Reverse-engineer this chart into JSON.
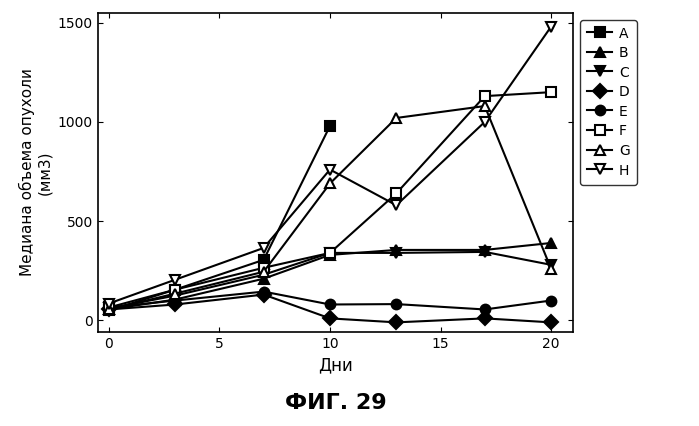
{
  "title": "ФИГ. 29",
  "xlabel": "Дни",
  "ylabel": "Медиана объема опухоли\n(мм3)",
  "xlim": [
    -0.5,
    21
  ],
  "ylim": [
    -60,
    1550
  ],
  "xticks": [
    0,
    5,
    10,
    15,
    20
  ],
  "yticks": [
    0,
    500,
    1000,
    1500
  ],
  "series": {
    "A": {
      "x": [
        0,
        3,
        7,
        10
      ],
      "y": [
        50,
        155,
        305,
        980
      ],
      "marker": "s",
      "fillstyle": "full"
    },
    "B": {
      "x": [
        0,
        3,
        7,
        10,
        13,
        17,
        20
      ],
      "y": [
        55,
        105,
        210,
        330,
        355,
        355,
        390
      ],
      "marker": "^",
      "fillstyle": "full"
    },
    "C": {
      "x": [
        0,
        3,
        7,
        10,
        13,
        17,
        20
      ],
      "y": [
        60,
        125,
        230,
        340,
        340,
        345,
        280
      ],
      "marker": "v",
      "fillstyle": "full"
    },
    "D": {
      "x": [
        0,
        3,
        7,
        10,
        13,
        17,
        20
      ],
      "y": [
        55,
        80,
        130,
        10,
        -10,
        10,
        -10
      ],
      "marker": "D",
      "fillstyle": "full"
    },
    "E": {
      "x": [
        0,
        3,
        7,
        10,
        13,
        17,
        20
      ],
      "y": [
        65,
        100,
        145,
        80,
        82,
        55,
        100
      ],
      "marker": "o",
      "fillstyle": "full"
    },
    "F": {
      "x": [
        0,
        3,
        7,
        10,
        13,
        17,
        20
      ],
      "y": [
        65,
        155,
        265,
        340,
        640,
        1130,
        1150
      ],
      "marker": "s",
      "fillstyle": "none"
    },
    "G": {
      "x": [
        0,
        3,
        7,
        10,
        13,
        17,
        20
      ],
      "y": [
        55,
        135,
        245,
        690,
        1020,
        1080,
        260
      ],
      "marker": "^",
      "fillstyle": "none"
    },
    "H": {
      "x": [
        0,
        3,
        7,
        10,
        13,
        17,
        20
      ],
      "y": [
        85,
        205,
        365,
        760,
        580,
        1000,
        1480
      ],
      "marker": "v",
      "fillstyle": "none"
    }
  },
  "color": "#000000",
  "background_color": "#ffffff",
  "markersize": 7,
  "linewidth": 1.5,
  "legend_fontsize": 10,
  "axis_fontsize": 11,
  "xlabel_fontsize": 12,
  "title_fontsize": 16
}
